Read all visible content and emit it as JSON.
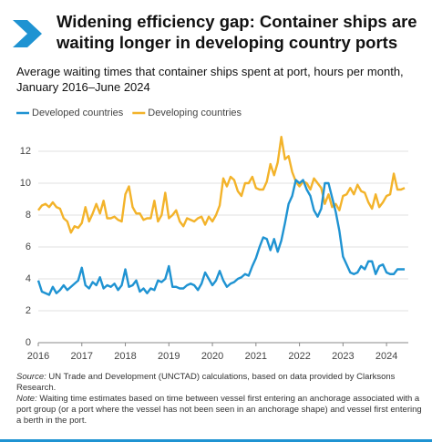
{
  "chart_data": {
    "type": "line",
    "title": "Widening efficiency gap: Container ships are waiting longer in developing country ports",
    "subtitle": "Average waiting times that container ships spent at port, hours per month, January 2016–June 2024",
    "x": [
      2016,
      2016.083,
      2016.167,
      2016.25,
      2016.333,
      2016.417,
      2016.5,
      2016.583,
      2016.667,
      2016.75,
      2016.833,
      2016.917,
      2017,
      2017.083,
      2017.167,
      2017.25,
      2017.333,
      2017.417,
      2017.5,
      2017.583,
      2017.667,
      2017.75,
      2017.833,
      2017.917,
      2018,
      2018.083,
      2018.167,
      2018.25,
      2018.333,
      2018.417,
      2018.5,
      2018.583,
      2018.667,
      2018.75,
      2018.833,
      2018.917,
      2019,
      2019.083,
      2019.167,
      2019.25,
      2019.333,
      2019.417,
      2019.5,
      2019.583,
      2019.667,
      2019.75,
      2019.833,
      2019.917,
      2020,
      2020.083,
      2020.167,
      2020.25,
      2020.333,
      2020.417,
      2020.5,
      2020.583,
      2020.667,
      2020.75,
      2020.833,
      2020.917,
      2021,
      2021.083,
      2021.167,
      2021.25,
      2021.333,
      2021.417,
      2021.5,
      2021.583,
      2021.667,
      2021.75,
      2021.833,
      2021.917,
      2022,
      2022.083,
      2022.167,
      2022.25,
      2022.333,
      2022.417,
      2022.5,
      2022.583,
      2022.667,
      2022.75,
      2022.833,
      2022.917,
      2023,
      2023.083,
      2023.167,
      2023.25,
      2023.333,
      2023.417,
      2023.5,
      2023.583,
      2023.667,
      2023.75,
      2023.833,
      2023.917,
      2024,
      2024.083,
      2024.167,
      2024.25,
      2024.333,
      2024.417
    ],
    "series": [
      {
        "name": "Developed countries",
        "color": "#1f93d2",
        "values": [
          3.9,
          3.2,
          3.1,
          3.0,
          3.5,
          3.1,
          3.3,
          3.6,
          3.3,
          3.5,
          3.7,
          3.9,
          4.7,
          3.6,
          3.4,
          3.8,
          3.6,
          4.1,
          3.4,
          3.6,
          3.5,
          3.7,
          3.3,
          3.6,
          4.6,
          3.5,
          3.6,
          3.9,
          3.2,
          3.4,
          3.1,
          3.4,
          3.3,
          3.9,
          3.8,
          4.0,
          4.8,
          3.5,
          3.5,
          3.4,
          3.4,
          3.6,
          3.7,
          3.6,
          3.3,
          3.7,
          4.4,
          4.0,
          3.6,
          3.9,
          4.5,
          3.9,
          3.5,
          3.7,
          3.8,
          4.0,
          4.1,
          4.3,
          4.2,
          4.8,
          5.3,
          6.0,
          6.6,
          6.5,
          5.8,
          6.5,
          5.7,
          6.4,
          7.5,
          8.7,
          9.2,
          10.2,
          10.0,
          10.2,
          9.6,
          9.2,
          8.3,
          7.9,
          8.4,
          10.0,
          10.0,
          9.1,
          8.2,
          7.0,
          5.4,
          4.9,
          4.4,
          4.3,
          4.4,
          4.8,
          4.6,
          5.1,
          5.1,
          4.3,
          4.8,
          4.9,
          4.4,
          4.3,
          4.3,
          4.6,
          4.6,
          4.6
        ]
      },
      {
        "name": "Developing countries",
        "color": "#f3b32a",
        "values": [
          8.3,
          8.6,
          8.7,
          8.5,
          8.8,
          8.5,
          8.4,
          7.8,
          7.6,
          6.9,
          7.3,
          7.2,
          7.5,
          8.5,
          7.6,
          8.1,
          8.7,
          8.1,
          8.9,
          7.8,
          7.8,
          7.9,
          7.7,
          7.6,
          9.3,
          9.8,
          8.5,
          8.1,
          8.1,
          7.7,
          7.8,
          7.8,
          8.9,
          7.6,
          8.0,
          9.4,
          7.8,
          8.0,
          8.3,
          7.6,
          7.3,
          7.8,
          7.7,
          7.6,
          7.8,
          7.9,
          7.4,
          7.9,
          7.6,
          8.0,
          8.6,
          10.3,
          9.8,
          10.4,
          10.2,
          9.5,
          9.2,
          10.0,
          10.0,
          10.4,
          9.7,
          9.6,
          9.6,
          10.1,
          11.2,
          10.5,
          11.3,
          12.9,
          11.5,
          11.7,
          10.7,
          10.1,
          9.8,
          10.1,
          10.0,
          9.6,
          10.3,
          10.0,
          9.7,
          8.7,
          9.3,
          8.5,
          8.7,
          8.3,
          9.2,
          9.3,
          9.7,
          9.3,
          9.9,
          9.5,
          9.4,
          8.8,
          8.4,
          9.3,
          8.5,
          8.8,
          9.2,
          9.3,
          10.6,
          9.6,
          9.6,
          9.7
        ]
      }
    ],
    "xlim": [
      2016,
      2024.5
    ],
    "xticks": [
      2016,
      2017,
      2018,
      2019,
      2020,
      2021,
      2022,
      2023,
      2024
    ],
    "ylim": [
      0,
      12.8
    ],
    "yticks": [
      0,
      2,
      4,
      6,
      8,
      10,
      12
    ],
    "grid": true,
    "legend": "top-left",
    "source_label": "Source:",
    "source": "UN Trade and Development (UNCTAD) calculations, based on data provided by Clarksons Research.",
    "note_label": "Note:",
    "note": "Waiting time estimates based on time between vessel first entering an anchorage associated with a port group (or a port where the vessel has not been seen in an anchorage shape) and vessel first entering a berth in the port."
  }
}
